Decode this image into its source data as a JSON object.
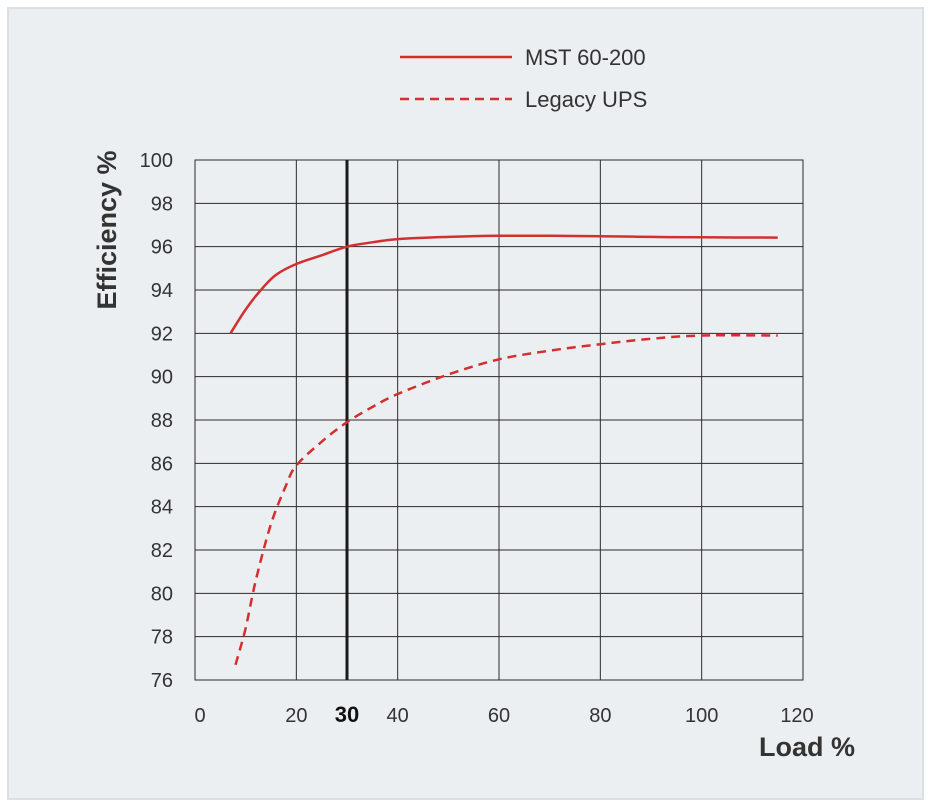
{
  "colors": {
    "background": "#eceff1",
    "border": "#dbe0e4",
    "grid": "#2a2a2a",
    "series": "#d32f2f",
    "text": "#333333",
    "highlight_line": "#1a1a1a"
  },
  "chart_data": {
    "type": "line",
    "title": "",
    "xlabel": "Load %",
    "ylabel": "Efficiency %",
    "xlim": [
      0,
      120
    ],
    "ylim": [
      76,
      100
    ],
    "x_ticks": [
      0,
      20,
      30,
      40,
      60,
      80,
      100,
      120
    ],
    "x_tick_labels": [
      "0",
      "20",
      "30",
      "40",
      "60",
      "80",
      "100",
      "120"
    ],
    "highlight_x": 30,
    "y_ticks": [
      76,
      78,
      80,
      82,
      84,
      86,
      88,
      90,
      92,
      94,
      96,
      98,
      100
    ],
    "y_tick_labels": [
      "76",
      "78",
      "80",
      "82",
      "84",
      "86",
      "88",
      "90",
      "92",
      "94",
      "96",
      "98",
      "100"
    ],
    "grid": true,
    "legend_position": "top",
    "series": [
      {
        "name": "MST 60-200",
        "style": "solid",
        "x": [
          7,
          10,
          13,
          16,
          20,
          25,
          30,
          35,
          40,
          50,
          60,
          70,
          80,
          90,
          100,
          115
        ],
        "y": [
          92.0,
          93.1,
          94.0,
          94.7,
          95.2,
          95.6,
          96.0,
          96.2,
          96.35,
          96.45,
          96.5,
          96.5,
          96.48,
          96.45,
          96.43,
          96.42
        ]
      },
      {
        "name": "Legacy UPS",
        "style": "dashed",
        "x": [
          8,
          10,
          12,
          15,
          18,
          20,
          25,
          30,
          35,
          40,
          50,
          60,
          70,
          80,
          90,
          100,
          115
        ],
        "y": [
          76.7,
          78.4,
          80.6,
          83.2,
          85.0,
          85.9,
          87.0,
          87.9,
          88.6,
          89.2,
          90.1,
          90.8,
          91.2,
          91.5,
          91.75,
          91.9,
          91.9
        ]
      }
    ]
  }
}
